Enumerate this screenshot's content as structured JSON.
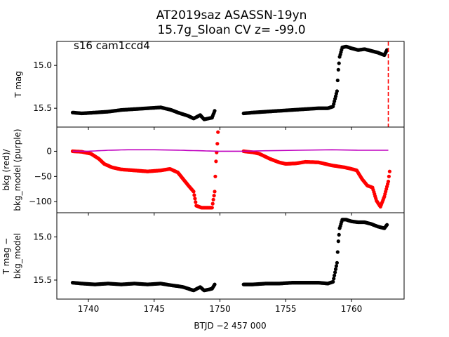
{
  "figure": {
    "title_line1": "AT2019saz  ASASSN-19yn",
    "title_line2": "15.7g_Sloan CV z= -99.0",
    "annotation": "s16 cam1ccd4",
    "xlabel": "BTJD −2 457 000"
  },
  "chart_data": [
    {
      "type": "scatter",
      "panel": "top",
      "ylabel": "T mag",
      "xlim": [
        1737.6,
        1764.0
      ],
      "ylim": [
        15.72,
        14.72
      ],
      "y_inverted": true,
      "xticks": [
        1740,
        1745,
        1750,
        1755,
        1760
      ],
      "xtick_labels": [
        "1740",
        "1745",
        "1750",
        "1755",
        "1760"
      ],
      "yticks": [
        15.0,
        15.5
      ],
      "ytick_labels": [
        "15.0",
        "15.5"
      ],
      "marker_vline": {
        "x": 1762.8,
        "color": "#ff0000",
        "style": "dashed"
      },
      "series": [
        {
          "color": "#000000",
          "points": [
            [
              1738.8,
              15.55
            ],
            [
              1739.5,
              15.56
            ],
            [
              1740.5,
              15.55
            ],
            [
              1741.5,
              15.54
            ],
            [
              1742.5,
              15.52
            ],
            [
              1743.5,
              15.51
            ],
            [
              1744.5,
              15.5
            ],
            [
              1745.5,
              15.49
            ],
            [
              1746.3,
              15.52
            ],
            [
              1746.8,
              15.55
            ],
            [
              1747.2,
              15.57
            ],
            [
              1747.6,
              15.59
            ],
            [
              1748.0,
              15.62
            ],
            [
              1748.5,
              15.58
            ],
            [
              1748.8,
              15.63
            ],
            [
              1749.4,
              15.61
            ],
            [
              1749.6,
              15.53
            ],
            [
              1751.8,
              15.56
            ],
            [
              1752.5,
              15.55
            ],
            [
              1753.5,
              15.54
            ],
            [
              1754.5,
              15.53
            ],
            [
              1755.5,
              15.52
            ],
            [
              1756.5,
              15.51
            ],
            [
              1757.5,
              15.5
            ],
            [
              1758.2,
              15.5
            ],
            [
              1758.6,
              15.48
            ],
            [
              1758.9,
              15.3
            ],
            [
              1759.0,
              15.05
            ],
            [
              1759.1,
              14.9
            ],
            [
              1759.3,
              14.79
            ],
            [
              1759.6,
              14.78
            ],
            [
              1760.0,
              14.8
            ],
            [
              1760.5,
              14.82
            ],
            [
              1761.0,
              14.81
            ],
            [
              1761.5,
              14.83
            ],
            [
              1762.0,
              14.85
            ],
            [
              1762.5,
              14.88
            ],
            [
              1762.7,
              14.82
            ]
          ]
        }
      ]
    },
    {
      "type": "line",
      "panel": "middle",
      "ylabel_line1": "bkg (red)/",
      "ylabel_line2": "bkg_model (purple)",
      "xlim": [
        1737.6,
        1764.0
      ],
      "ylim": [
        -122,
        48
      ],
      "yticks": [
        0,
        -50,
        -100
      ],
      "ytick_labels": [
        "0",
        "−50",
        "−100"
      ],
      "series": [
        {
          "color": "#ff0000",
          "style": "points",
          "points": [
            [
              1738.8,
              0
            ],
            [
              1739.5,
              -1
            ],
            [
              1740.2,
              -5
            ],
            [
              1740.8,
              -15
            ],
            [
              1741.2,
              -25
            ],
            [
              1741.8,
              -32
            ],
            [
              1742.5,
              -36
            ],
            [
              1743.5,
              -38
            ],
            [
              1744.5,
              -40
            ],
            [
              1745.5,
              -38
            ],
            [
              1746.2,
              -35
            ],
            [
              1746.8,
              -42
            ],
            [
              1747.2,
              -55
            ],
            [
              1747.6,
              -68
            ],
            [
              1748.0,
              -80
            ],
            [
              1748.2,
              -108
            ],
            [
              1748.6,
              -112
            ],
            [
              1749.0,
              -112
            ],
            [
              1749.4,
              -112
            ],
            [
              1749.6,
              -80
            ],
            [
              1749.7,
              -20
            ],
            [
              1749.8,
              15
            ],
            [
              1749.85,
              38
            ],
            [
              1751.8,
              0
            ],
            [
              1752.5,
              -2
            ],
            [
              1753.0,
              -5
            ],
            [
              1753.8,
              -15
            ],
            [
              1754.5,
              -22
            ],
            [
              1755.0,
              -25
            ],
            [
              1755.8,
              -24
            ],
            [
              1756.5,
              -21
            ],
            [
              1757.5,
              -22
            ],
            [
              1758.0,
              -25
            ],
            [
              1758.5,
              -28
            ],
            [
              1759.0,
              -30
            ],
            [
              1759.5,
              -32
            ],
            [
              1760.0,
              -35
            ],
            [
              1760.4,
              -38
            ],
            [
              1760.8,
              -55
            ],
            [
              1761.2,
              -68
            ],
            [
              1761.6,
              -72
            ],
            [
              1761.9,
              -98
            ],
            [
              1762.2,
              -110
            ],
            [
              1762.5,
              -90
            ],
            [
              1762.8,
              -60
            ],
            [
              1762.9,
              -40
            ]
          ]
        },
        {
          "color": "#bf00bf",
          "style": "line",
          "points": [
            [
              1738.8,
              0
            ],
            [
              1740.0,
              0
            ],
            [
              1741.5,
              2
            ],
            [
              1743.0,
              3
            ],
            [
              1745.0,
              3
            ],
            [
              1747.0,
              2
            ],
            [
              1748.5,
              1
            ],
            [
              1749.9,
              0
            ],
            [
              1751.8,
              0
            ],
            [
              1753.5,
              1
            ],
            [
              1756.0,
              2
            ],
            [
              1758.5,
              3
            ],
            [
              1760.5,
              2
            ],
            [
              1762.8,
              2
            ]
          ]
        }
      ]
    },
    {
      "type": "scatter",
      "panel": "bottom",
      "ylabel_line1": "T mag −",
      "ylabel_line2": "bkg_model",
      "xlim": [
        1737.6,
        1764.0
      ],
      "ylim": [
        15.72,
        14.72
      ],
      "y_inverted": true,
      "yticks": [
        15.0,
        15.5
      ],
      "ytick_labels": [
        "15.0",
        "15.5"
      ],
      "series": [
        {
          "color": "#000000",
          "points": [
            [
              1738.8,
              15.53
            ],
            [
              1739.5,
              15.54
            ],
            [
              1740.5,
              15.55
            ],
            [
              1741.5,
              15.54
            ],
            [
              1742.5,
              15.55
            ],
            [
              1743.5,
              15.54
            ],
            [
              1744.5,
              15.55
            ],
            [
              1745.5,
              15.54
            ],
            [
              1746.3,
              15.56
            ],
            [
              1746.8,
              15.57
            ],
            [
              1747.2,
              15.58
            ],
            [
              1747.6,
              15.6
            ],
            [
              1748.0,
              15.62
            ],
            [
              1748.5,
              15.58
            ],
            [
              1748.8,
              15.62
            ],
            [
              1749.4,
              15.6
            ],
            [
              1749.6,
              15.55
            ],
            [
              1751.8,
              15.55
            ],
            [
              1752.5,
              15.55
            ],
            [
              1753.5,
              15.54
            ],
            [
              1754.5,
              15.54
            ],
            [
              1755.5,
              15.53
            ],
            [
              1756.5,
              15.53
            ],
            [
              1757.5,
              15.53
            ],
            [
              1758.2,
              15.54
            ],
            [
              1758.6,
              15.52
            ],
            [
              1758.9,
              15.3
            ],
            [
              1759.0,
              15.05
            ],
            [
              1759.1,
              14.9
            ],
            [
              1759.3,
              14.8
            ],
            [
              1759.6,
              14.8
            ],
            [
              1760.0,
              14.82
            ],
            [
              1760.5,
              14.83
            ],
            [
              1761.0,
              14.83
            ],
            [
              1761.5,
              14.85
            ],
            [
              1762.0,
              14.88
            ],
            [
              1762.5,
              14.9
            ],
            [
              1762.7,
              14.86
            ]
          ]
        }
      ]
    }
  ]
}
